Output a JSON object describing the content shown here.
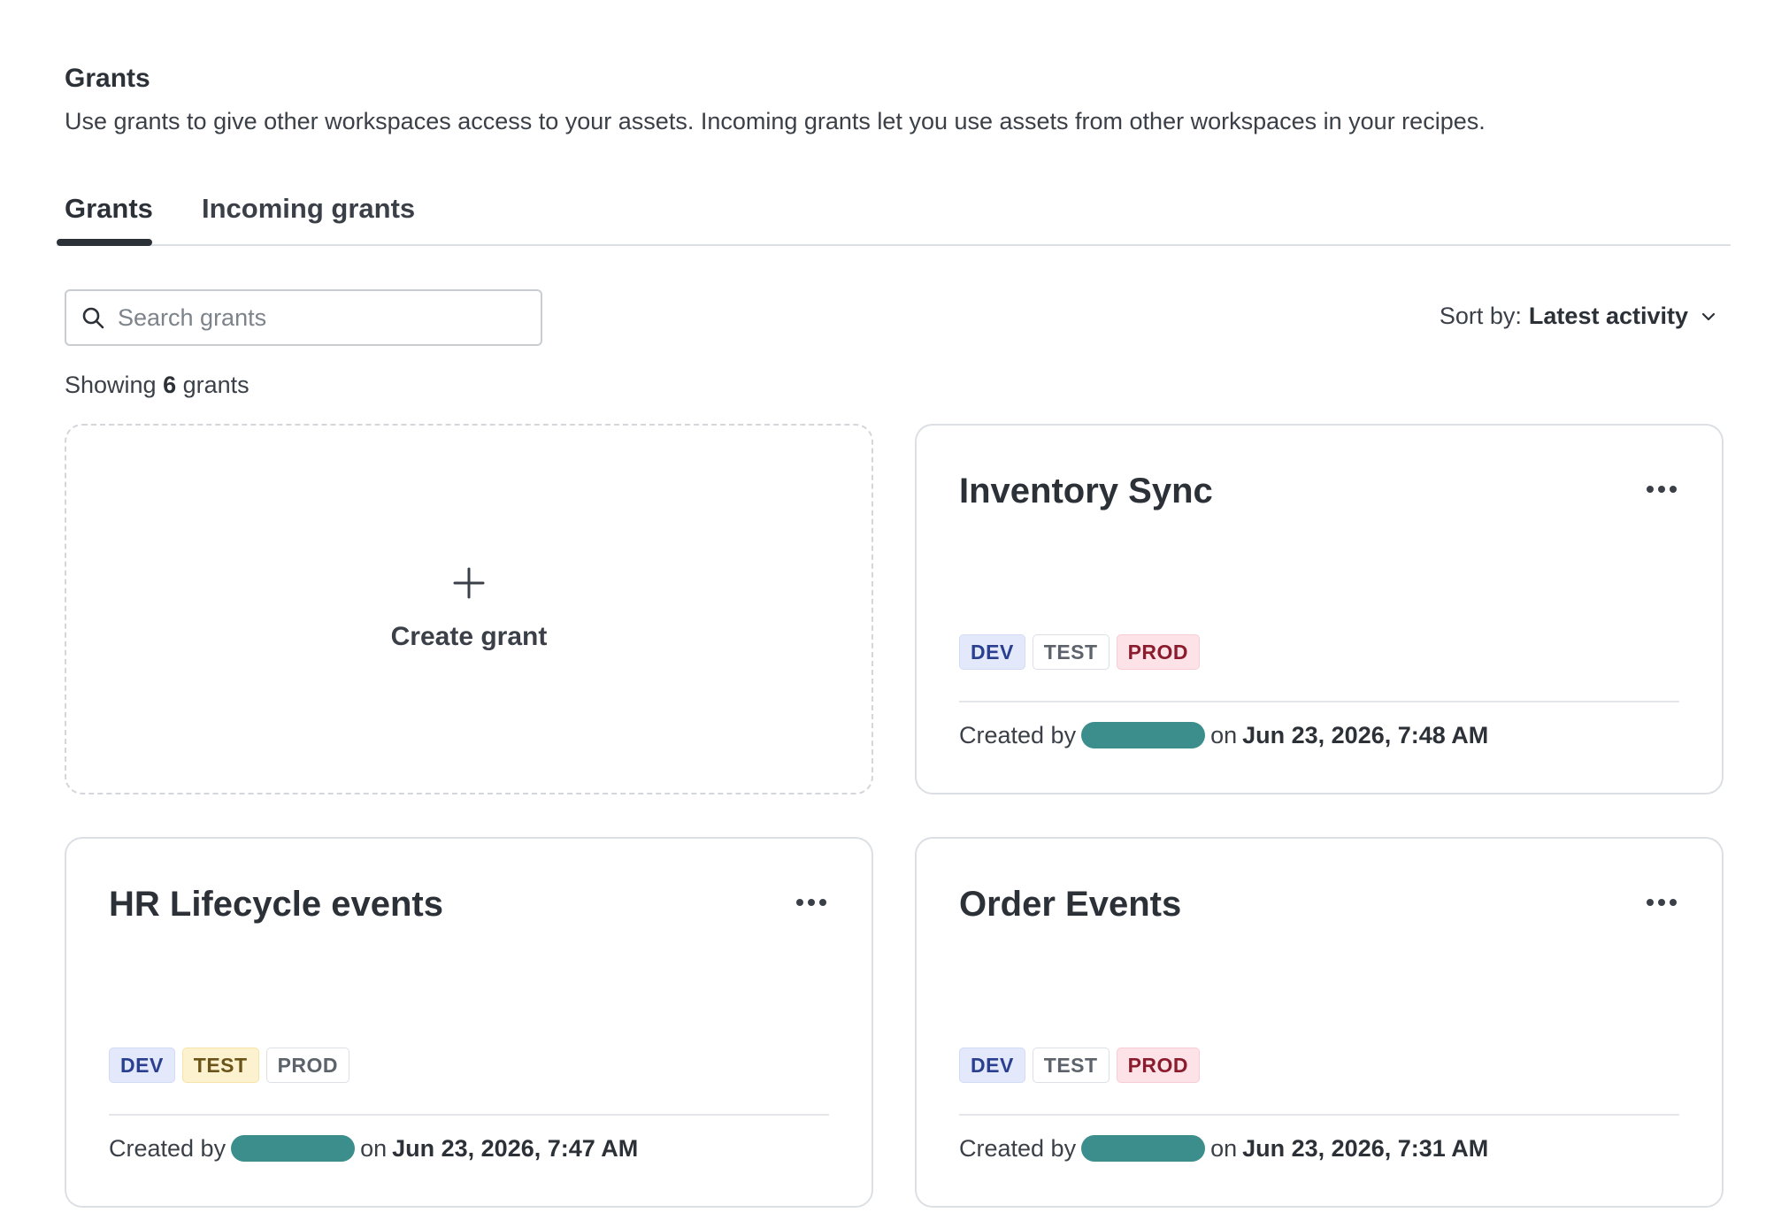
{
  "header": {
    "title": "Grants",
    "description": "Use grants to give other workspaces access to your assets. Incoming grants let you use assets from other workspaces in your recipes."
  },
  "tabs": [
    {
      "label": "Grants",
      "active": true
    },
    {
      "label": "Incoming grants",
      "active": false
    }
  ],
  "search": {
    "placeholder": "Search grants",
    "value": ""
  },
  "sort": {
    "label": "Sort by:",
    "value": "Latest activity"
  },
  "summary": {
    "prefix": "Showing",
    "count": "6",
    "suffix": "grants"
  },
  "create_card": {
    "label": "Create grant"
  },
  "grants": [
    {
      "title": "Inventory Sync",
      "tags": [
        "DEV",
        "TEST",
        "PROD"
      ],
      "created_prefix": "Created by",
      "created_on": "on",
      "created_at": "Jun 23, 2026, 7:48 AM"
    },
    {
      "title": "HR Lifecycle events",
      "tags": [
        "DEV",
        "TEST",
        "PROD"
      ],
      "created_prefix": "Created by",
      "created_on": "on",
      "created_at": "Jun 23, 2026, 7:47 AM"
    },
    {
      "title": "Order Events",
      "tags": [
        "DEV",
        "TEST",
        "PROD"
      ],
      "created_prefix": "Created by",
      "created_on": "on",
      "created_at": "Jun 23, 2026, 7:31 AM"
    }
  ],
  "colors": {
    "text_primary": "#2c3138",
    "redaction": "#3b8e8c",
    "tag_dev_bg": "#e3e9fb",
    "tag_test_highlight_bg": "#fdf2cf",
    "tag_prod_highlight_bg": "#fde3e7"
  },
  "icons": [
    "search-icon",
    "chevron-down-icon",
    "plus-icon",
    "more-options-icon"
  ]
}
